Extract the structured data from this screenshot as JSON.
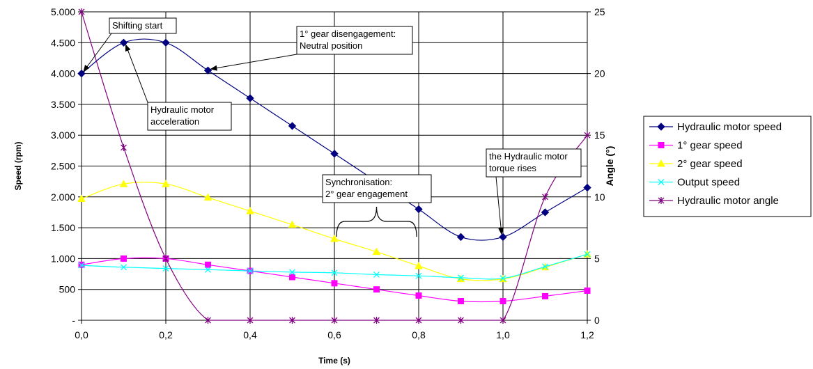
{
  "chart_data": {
    "type": "line",
    "title": "",
    "xlabel": "Time (s)",
    "ylabel": "Speed (rpm)",
    "y2label": "Angle (°)",
    "xlim": [
      0,
      1.2
    ],
    "ylim": [
      0,
      5000
    ],
    "y2lim": [
      0,
      25
    ],
    "x_ticks": [
      "0,0",
      "0,2",
      "0,4",
      "0,6",
      "0,8",
      "1,0",
      "1,2"
    ],
    "y_ticks": [
      "-",
      "500",
      "1.000",
      "1.500",
      "2.000",
      "2.500",
      "3.000",
      "3.500",
      "4.000",
      "4.500",
      "5.000"
    ],
    "y2_ticks": [
      "0",
      "5",
      "10",
      "15",
      "20",
      "25"
    ],
    "grid": true,
    "legend_position": "right",
    "x": [
      0,
      0.1,
      0.2,
      0.3,
      0.4,
      0.5,
      0.6,
      0.7,
      0.8,
      0.9,
      1.0,
      1.1,
      1.2
    ],
    "series": [
      {
        "name": "Hydraulic motor speed",
        "color": "#000080",
        "marker": "diamond",
        "axis": "left",
        "values": [
          4000,
          4500,
          4500,
          4050,
          3600,
          3150,
          2700,
          2250,
          1800,
          1350,
          1350,
          1750,
          2150
        ]
      },
      {
        "name": "1° gear speed",
        "color": "#FF00FF",
        "marker": "square",
        "axis": "left",
        "values": [
          900,
          1000,
          1000,
          900,
          800,
          700,
          600,
          500,
          400,
          310,
          310,
          390,
          480
        ]
      },
      {
        "name": "2° gear speed",
        "color": "#FFFF00",
        "marker": "triangle",
        "axis": "left",
        "values": [
          1970,
          2210,
          2210,
          1990,
          1770,
          1550,
          1320,
          1110,
          880,
          670,
          670,
          860,
          1070
        ]
      },
      {
        "name": "Output speed",
        "color": "#00FFFF",
        "marker": "x",
        "axis": "left",
        "values": [
          890,
          860,
          840,
          820,
          800,
          780,
          770,
          740,
          720,
          690,
          680,
          870,
          1070
        ]
      },
      {
        "name": "Hydraulic motor angle",
        "color": "#800080",
        "marker": "star",
        "axis": "right",
        "values": [
          25,
          14,
          5,
          0,
          0,
          0,
          0,
          0,
          0,
          0,
          0,
          10,
          15
        ]
      }
    ],
    "annotations": [
      {
        "id": "shifting",
        "lines": [
          "Shifting start"
        ]
      },
      {
        "id": "hydacc",
        "lines": [
          "Hydraulic motor",
          "acceleration"
        ]
      },
      {
        "id": "diseng",
        "lines": [
          "1° gear disengagement:",
          "Neutral position"
        ]
      },
      {
        "id": "sync",
        "lines": [
          "Synchronisation:",
          "2° gear engagement"
        ]
      },
      {
        "id": "torque",
        "lines": [
          "the Hydraulic motor",
          "torque rises"
        ]
      }
    ]
  }
}
